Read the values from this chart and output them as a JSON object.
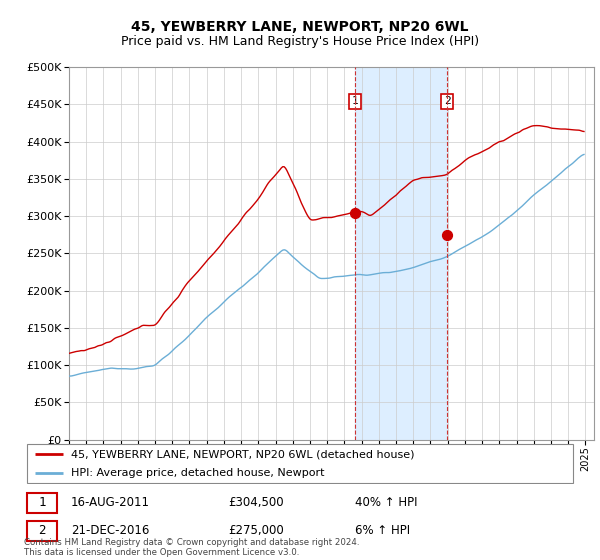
{
  "title": "45, YEWBERRY LANE, NEWPORT, NP20 6WL",
  "subtitle": "Price paid vs. HM Land Registry's House Price Index (HPI)",
  "ylim": [
    0,
    500000
  ],
  "yticks": [
    0,
    50000,
    100000,
    150000,
    200000,
    250000,
    300000,
    350000,
    400000,
    450000,
    500000
  ],
  "xlim": [
    1995,
    2025.5
  ],
  "marker1_year": 2011.62,
  "marker1_price": 304500,
  "marker2_year": 2016.97,
  "marker2_price": 275000,
  "legend_entry1": "45, YEWBERRY LANE, NEWPORT, NP20 6WL (detached house)",
  "legend_entry2": "HPI: Average price, detached house, Newport",
  "table_row1": [
    "1",
    "16-AUG-2011",
    "£304,500",
    "40% ↑ HPI"
  ],
  "table_row2": [
    "2",
    "21-DEC-2016",
    "£275,000",
    "6% ↑ HPI"
  ],
  "footer": "Contains HM Land Registry data © Crown copyright and database right 2024.\nThis data is licensed under the Open Government Licence v3.0.",
  "hpi_color": "#6baed6",
  "price_color": "#cc0000",
  "shade_color": "#ddeeff",
  "grid_color": "#cccccc",
  "title_fontsize": 10,
  "subtitle_fontsize": 9
}
